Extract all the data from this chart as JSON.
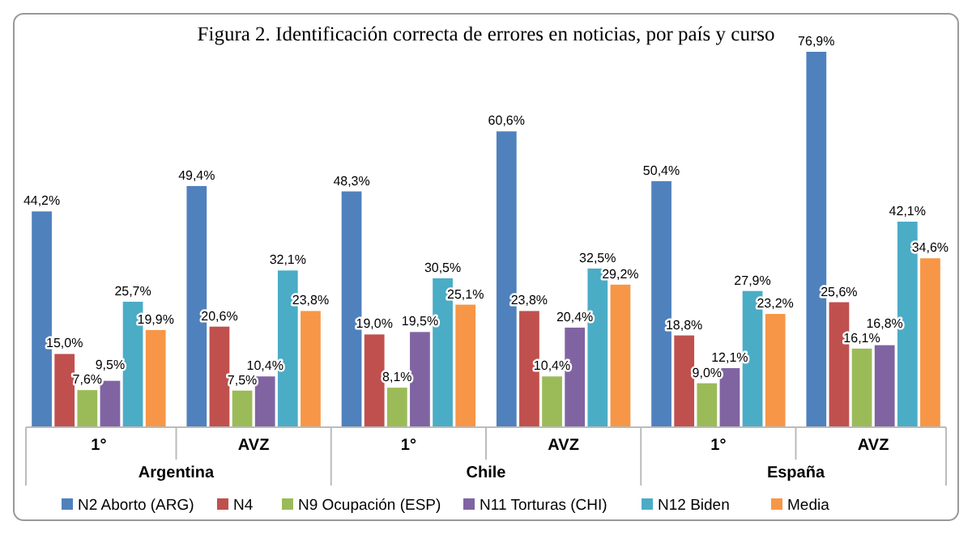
{
  "chart_data": {
    "type": "bar",
    "title": "Figura 2. Identificación correcta de errores en noticias, por país y curso",
    "categories": [
      "1°",
      "AVZ",
      "1°",
      "AVZ",
      "1°",
      "AVZ"
    ],
    "annotations": [
      "Argentina",
      "Chile",
      "España"
    ],
    "series": [
      {
        "name": "N2 Aborto (ARG)",
        "color": "#4f81bd",
        "values": [
          44.2,
          49.4,
          48.3,
          60.6,
          50.4,
          76.9
        ],
        "value_labels": [
          "44,2%",
          "49,4%",
          "48,3%",
          "60,6%",
          "50,4%",
          "76,9%"
        ]
      },
      {
        "name": "N4",
        "color": "#c0504d",
        "values": [
          15.0,
          20.6,
          19.0,
          23.8,
          18.8,
          25.6
        ],
        "value_labels": [
          "15,0%",
          "20,6%",
          "19,0%",
          "23,8%",
          "18,8%",
          "25,6%"
        ]
      },
      {
        "name": "N9 Ocupación (ESP)",
        "color": "#9bbb59",
        "values": [
          7.6,
          7.5,
          8.1,
          10.4,
          9.0,
          16.1
        ],
        "value_labels": [
          "7,6%",
          "7,5%",
          "8,1%",
          "10,4%",
          "9,0%",
          "16,1%"
        ]
      },
      {
        "name": "N11 Torturas (CHI)",
        "color": "#8064a2",
        "values": [
          9.5,
          10.4,
          19.5,
          20.4,
          12.1,
          16.8
        ],
        "value_labels": [
          "9,5%",
          "10,4%",
          "19,5%",
          "20,4%",
          "12,1%",
          "16,8%"
        ]
      },
      {
        "name": "N12 Biden",
        "color": "#4bacc6",
        "values": [
          25.7,
          32.1,
          30.5,
          32.5,
          27.9,
          42.1
        ],
        "value_labels": [
          "25,7%",
          "32,1%",
          "30,5%",
          "32,5%",
          "27,9%",
          "42,1%"
        ]
      },
      {
        "name": "Media",
        "color": "#f79646",
        "values": [
          19.9,
          23.8,
          25.1,
          29.2,
          23.2,
          34.6
        ],
        "value_labels": [
          "19,9%",
          "23,8%",
          "25,1%",
          "29,2%",
          "23,2%",
          "34,6%"
        ]
      }
    ],
    "legend": "bottom",
    "grid": false
  }
}
